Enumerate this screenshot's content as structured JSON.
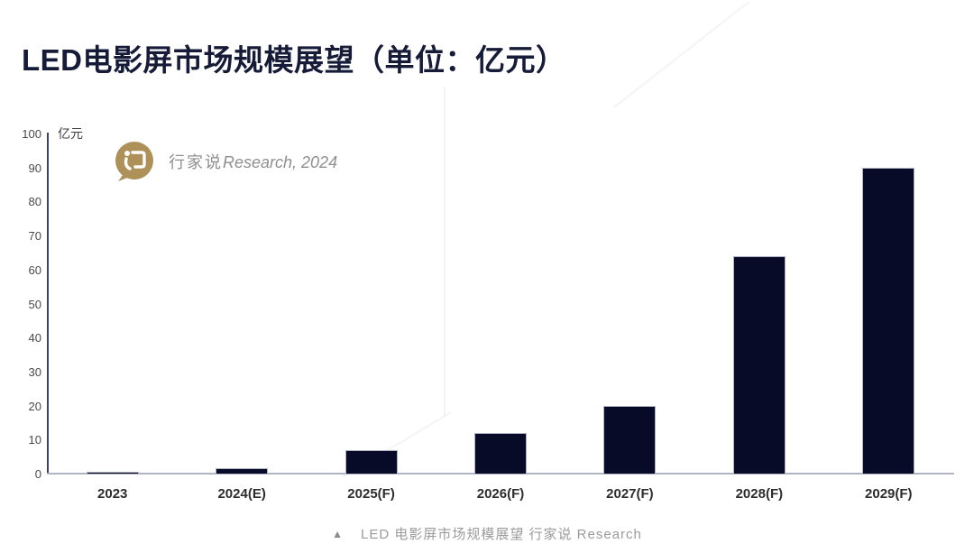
{
  "header": {
    "title": "LED电影屏市场规模展望（单位：亿元）"
  },
  "watermark": {
    "logo": "hangjiashuo-circle-logo",
    "logo_color": "#ad9159",
    "text_cjk": "行家说",
    "text_latin": "Research, 2024"
  },
  "caption": {
    "marker": "▲",
    "text": "LED 电影屏市场规模展望 行家说 Research"
  },
  "chart_data": {
    "type": "bar",
    "title": "LED电影屏市场规模展望（单位：亿元）",
    "unit_label": "亿元",
    "categories": [
      "2023",
      "2024(E)",
      "2025(F)",
      "2026(F)",
      "2027(F)",
      "2028(F)",
      "2029(F)"
    ],
    "values": [
      0.5,
      1.5,
      7,
      12,
      20,
      64,
      90
    ],
    "ylim": [
      0,
      100
    ],
    "ytick_step": 10,
    "grid": false,
    "legend": null,
    "bar_color": "#070b28",
    "bar_border_color": "#aeb1c2",
    "axis_color": "#3c4166",
    "baseline_color": "#b2b5c4",
    "tick_label_color": "#4a4a4a",
    "category_label_color": "#2d2d2d"
  }
}
